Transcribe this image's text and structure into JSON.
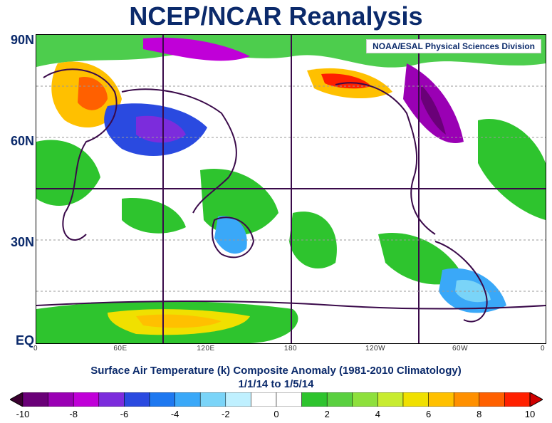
{
  "title": "NCEP/NCAR Reanalysis",
  "credit": "NOAA/ESAL Physical Sciences Division",
  "lat_labels": [
    "90N",
    "60N",
    "30N",
    "EQ"
  ],
  "lon_labels": [
    "0",
    "60E",
    "120E",
    "180",
    "120W",
    "60W",
    "0"
  ],
  "caption": {
    "line1": "Surface Air Temperature (k) Composite Anomaly (1981-2010 Climatology)",
    "line2": "1/1/14 to 1/5/14"
  },
  "colorbar": {
    "labels": [
      "-10",
      "-8",
      "-6",
      "-4",
      "-2",
      "0",
      "2",
      "4",
      "6",
      "8",
      "10"
    ],
    "colors": [
      "#3a0030",
      "#6a0078",
      "#9a00b4",
      "#c000d8",
      "#7c2cdc",
      "#2a4ae0",
      "#1e78f0",
      "#3aa8f8",
      "#7ad4f8",
      "#bff0ff",
      "#ffffff",
      "#ffffff",
      "#2ec42e",
      "#5ad040",
      "#8ee03c",
      "#c8ec30",
      "#f0e000",
      "#ffc000",
      "#ff9000",
      "#ff6000",
      "#ff2000",
      "#d00000"
    ]
  }
}
